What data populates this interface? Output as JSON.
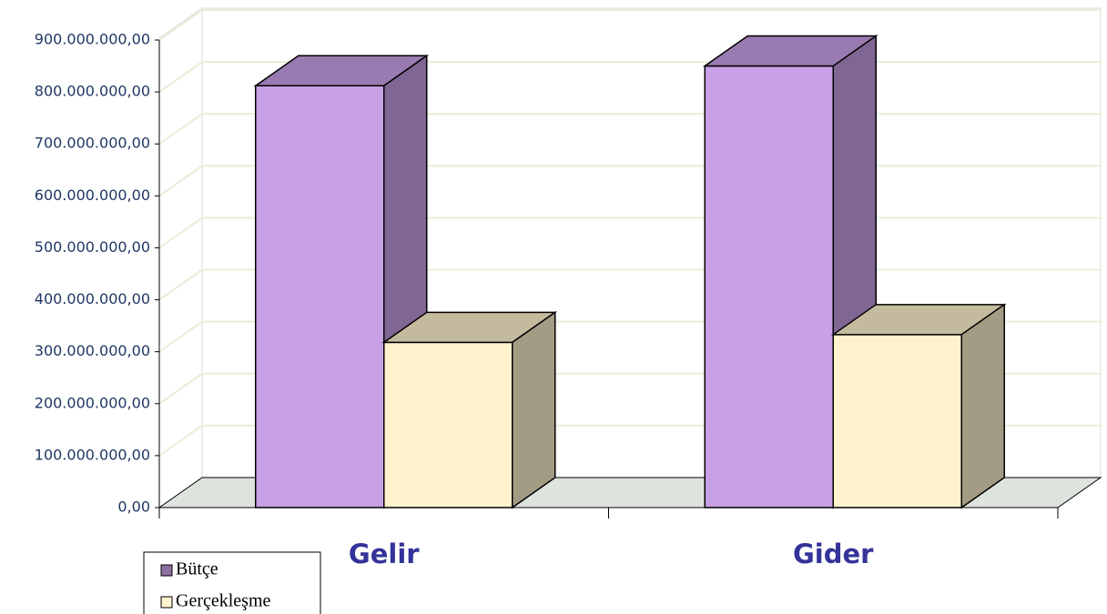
{
  "chart_data": {
    "type": "bar",
    "categories": [
      "Gelir",
      "Gider"
    ],
    "series": [
      {
        "name": "Bütçe",
        "color": "#c8a0e6",
        "values": [
          812000000,
          850000000
        ]
      },
      {
        "name": "Gerçekleşme",
        "color": "#fff2cc",
        "values": [
          318000000,
          333000000
        ]
      }
    ],
    "ylim": [
      0,
      900000000
    ],
    "yticks": [
      {
        "value": 0,
        "label": "0,00"
      },
      {
        "value": 100000000,
        "label": "100.000.000,00"
      },
      {
        "value": 200000000,
        "label": "200.000.000,00"
      },
      {
        "value": 300000000,
        "label": "300.000.000,00"
      },
      {
        "value": 400000000,
        "label": "400.000.000,00"
      },
      {
        "value": 500000000,
        "label": "500.000.000,00"
      },
      {
        "value": 600000000,
        "label": "600.000.000,00"
      },
      {
        "value": 700000000,
        "label": "700.000.000,00"
      },
      {
        "value": 800000000,
        "label": "800.000.000,00"
      },
      {
        "value": 900000000,
        "label": "900.000.000,00"
      }
    ],
    "grid": true,
    "legend": "bottom-left"
  }
}
